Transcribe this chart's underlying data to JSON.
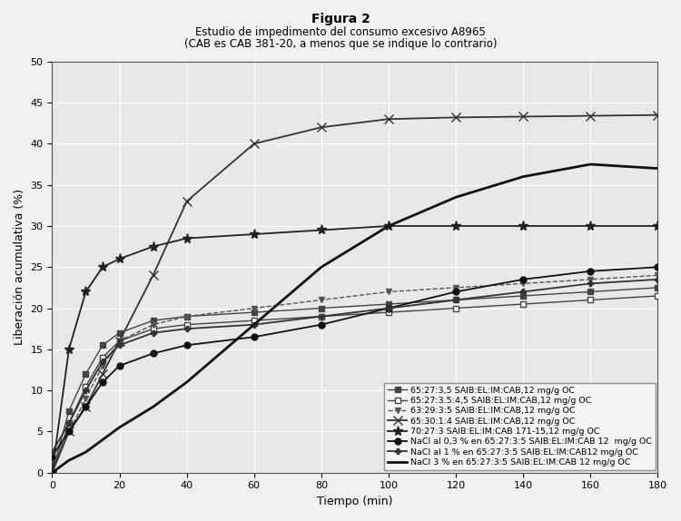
{
  "title_main": "Figura 2",
  "title_sub1": "Estudio de impedimento del consumo excesivo A8965",
  "title_sub2": "(CAB es CAB 381-20, a menos que se indique lo contrario)",
  "xlabel": "Tiempo (min)",
  "ylabel": "Liberación acumulativa (%)",
  "xlim": [
    0,
    180
  ],
  "ylim": [
    0,
    50
  ],
  "yticks": [
    0,
    5,
    10,
    15,
    20,
    25,
    30,
    35,
    40,
    45,
    50
  ],
  "xticks": [
    0,
    20,
    40,
    60,
    80,
    100,
    120,
    140,
    160,
    180
  ],
  "series": [
    {
      "label": "65:27:3,5 SAIB:EL:IM:CAB,12 mg/g OC",
      "x": [
        0,
        5,
        10,
        15,
        20,
        30,
        40,
        60,
        80,
        100,
        120,
        140,
        160,
        180
      ],
      "y": [
        0,
        7.5,
        12,
        15.5,
        17,
        18.5,
        19,
        19.5,
        20,
        20.5,
        21,
        21.5,
        22,
        22.5
      ],
      "color": "#444444",
      "linestyle": "-",
      "marker": "s",
      "markersize": 4,
      "linewidth": 1.0,
      "markerfacecolor": "#444444"
    },
    {
      "label": "65:27:3.5:4,5 SAIB:EL:IM:CAB,12 mg/g OC",
      "x": [
        0,
        5,
        10,
        15,
        20,
        30,
        40,
        60,
        80,
        100,
        120,
        140,
        160,
        180
      ],
      "y": [
        0,
        6,
        10.5,
        14,
        16,
        17.5,
        18,
        18.5,
        19,
        19.5,
        20,
        20.5,
        21,
        21.5
      ],
      "color": "#444444",
      "linestyle": "-",
      "marker": "s",
      "markersize": 4,
      "linewidth": 1.0,
      "markerfacecolor": "white"
    },
    {
      "label": "63:29:3:5 SAIB:EL:IM:CAB,12 mg/g OC",
      "x": [
        0,
        5,
        10,
        15,
        20,
        30,
        40,
        60,
        80,
        100,
        120,
        140,
        160,
        180
      ],
      "y": [
        0,
        5,
        9,
        13,
        16,
        18,
        19,
        20,
        21,
        22,
        22.5,
        23,
        23.5,
        24
      ],
      "color": "#555555",
      "linestyle": "--",
      "marker": "v",
      "markersize": 4,
      "linewidth": 1.0,
      "markerfacecolor": "#555555"
    },
    {
      "label": "65:30:1:4 SAIB:EL:IM:CAB,12 mg/g OC",
      "x": [
        0,
        5,
        10,
        15,
        20,
        30,
        40,
        60,
        80,
        100,
        120,
        140,
        160,
        180
      ],
      "y": [
        0,
        5,
        8,
        12,
        16,
        24,
        33,
        40,
        42,
        43,
        43.2,
        43.3,
        43.4,
        43.5
      ],
      "color": "#333333",
      "linestyle": "-",
      "marker": "x",
      "markersize": 7,
      "linewidth": 1.3,
      "markerfacecolor": "#333333"
    },
    {
      "label": "70:27:3 SAIB:EL:IM:CAB 171-15,12 mg/g OC",
      "x": [
        0,
        5,
        10,
        15,
        20,
        30,
        40,
        60,
        80,
        100,
        120,
        140,
        160,
        180
      ],
      "y": [
        0,
        15,
        22,
        25,
        26,
        27.5,
        28.5,
        29,
        29.5,
        30,
        30,
        30,
        30,
        30
      ],
      "color": "#222222",
      "linestyle": "-",
      "marker": "*",
      "markersize": 8,
      "linewidth": 1.3,
      "markerfacecolor": "#222222"
    },
    {
      "label": "NaCl al 0,3 % en 65:27:3:5 SAIB:EL:IM:CAB 12  mg/g OC",
      "x": [
        0,
        5,
        10,
        15,
        20,
        30,
        40,
        60,
        80,
        100,
        120,
        140,
        160,
        180
      ],
      "y": [
        2,
        5,
        8,
        11,
        13,
        14.5,
        15.5,
        16.5,
        18,
        20,
        22,
        23.5,
        24.5,
        25
      ],
      "color": "#111111",
      "linestyle": "-",
      "marker": "o",
      "markersize": 5,
      "linewidth": 1.3,
      "markerfacecolor": "#111111"
    },
    {
      "label": "NaCl al 1 % en 65:27:3:5 SAIB:EL:IM:CAB12 mg/g OC",
      "x": [
        0,
        5,
        10,
        15,
        20,
        30,
        40,
        60,
        80,
        100,
        120,
        140,
        160,
        180
      ],
      "y": [
        2.5,
        6,
        10,
        13.5,
        15.5,
        17,
        17.5,
        18,
        19,
        20,
        21,
        22,
        23,
        23.5
      ],
      "color": "#333333",
      "linestyle": "-",
      "marker": "P",
      "markersize": 5,
      "linewidth": 1.3,
      "markerfacecolor": "#333333"
    },
    {
      "label": "NaCl 3 % en 65:27:3:5 SAIB:EL:IM:CAB 12 mg/g OC",
      "x": [
        0,
        5,
        10,
        15,
        20,
        30,
        40,
        60,
        80,
        100,
        120,
        140,
        160,
        180
      ],
      "y": [
        0,
        1.5,
        2.5,
        4,
        5.5,
        8,
        11,
        18,
        25,
        30,
        33.5,
        36,
        37.5,
        37
      ],
      "color": "#111111",
      "linestyle": "-",
      "marker": null,
      "markersize": 0,
      "linewidth": 2.0,
      "markerfacecolor": "#111111"
    }
  ],
  "background_color": "#f0f0f0",
  "plot_bg_color": "#e8e8e8",
  "grid_color": "#ffffff",
  "title_fontsize": 10,
  "subtitle_fontsize": 8.5,
  "axis_label_fontsize": 9,
  "tick_fontsize": 8,
  "legend_fontsize": 6.8
}
